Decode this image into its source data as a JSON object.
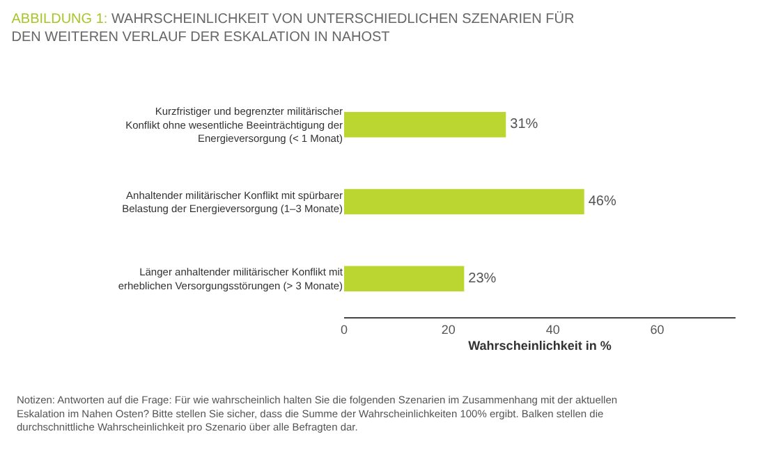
{
  "chart_data": {
    "type": "bar",
    "orientation": "horizontal",
    "title": "ABBILDUNG 1: WAHRSCHEINLICHKEIT VON UNTERSCHIEDLICHEN SZENARIEN FÜR DEN WEITEREN VERLAUF DER ESKALATION IN NAHOST",
    "categories": [
      "Kurzfristiger und begrenzter militärischer Konflikt ohne wesentliche Beeinträchtigung der Energieversorgung (< 1 Monat)",
      "Anhaltender militärischer Konflikt mit spürbarer Belastung der Energieversorgung (1–3 Monate)",
      "Länger anhaltender militärischer Konflikt mit erheblichen Versorgungsstörungen (> 3 Monate)"
    ],
    "values": [
      31,
      46,
      23
    ],
    "value_labels": [
      "31%",
      "46%",
      "23%"
    ],
    "color": "#bcd631",
    "xlim": [
      0,
      75
    ],
    "xticks": [
      0,
      20,
      40,
      60
    ],
    "xlabel": "Wahrscheinlichkeit in %",
    "legend": false,
    "annotations": [
      "Notizen: Antworten auf die Frage: Für wie wahrscheinlich halten Sie die folgenden Szenarien im Zusammenhang mit der aktuellen Eskalation im Nahen Osten? Bitte stellen Sie sicher, dass die Summe der Wahrscheinlichkeiten 100% ergibt. Balken stellen die durchschnittliche Wahrscheinlichkeit pro Szenario über alle Befragten dar."
    ]
  }
}
